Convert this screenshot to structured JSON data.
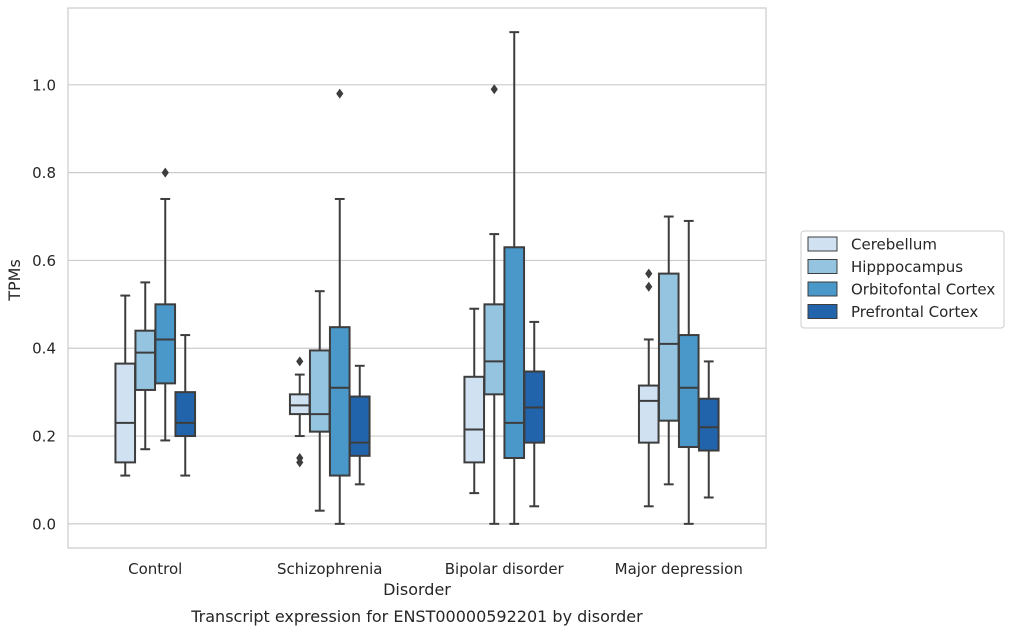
{
  "chart_data": {
    "type": "box",
    "caption": "Transcript expression for ENST00000592201 by disorder",
    "xlabel": "Disorder",
    "ylabel": "TPMs",
    "ylim": [
      -0.055,
      1.175
    ],
    "yticks": [
      0.0,
      0.2,
      0.4,
      0.6,
      0.8,
      1.0
    ],
    "ytick_labels": [
      "0.0",
      "0.2",
      "0.4",
      "0.6",
      "0.8",
      "1.0"
    ],
    "grid": true,
    "legend_position": "right-outside",
    "categories": [
      "Control",
      "Schizophrenia",
      "Bipolar disorder",
      "Major depression"
    ],
    "series": [
      {
        "name": "Cerebellum",
        "color": "#d0e1f2",
        "boxes": [
          {
            "whislo": 0.11,
            "q1": 0.14,
            "med": 0.23,
            "q3": 0.365,
            "whishi": 0.52,
            "fliers": []
          },
          {
            "whislo": 0.2,
            "q1": 0.25,
            "med": 0.27,
            "q3": 0.295,
            "whishi": 0.34,
            "fliers": [
              0.37,
              0.15,
              0.14
            ]
          },
          {
            "whislo": 0.07,
            "q1": 0.14,
            "med": 0.215,
            "q3": 0.335,
            "whishi": 0.49,
            "fliers": []
          },
          {
            "whislo": 0.04,
            "q1": 0.185,
            "med": 0.28,
            "q3": 0.315,
            "whishi": 0.42,
            "fliers": [
              0.57,
              0.54
            ]
          }
        ]
      },
      {
        "name": "Hipppocampus",
        "color": "#94c4df",
        "boxes": [
          {
            "whislo": 0.17,
            "q1": 0.305,
            "med": 0.39,
            "q3": 0.44,
            "whishi": 0.55,
            "fliers": []
          },
          {
            "whislo": 0.03,
            "q1": 0.21,
            "med": 0.25,
            "q3": 0.395,
            "whishi": 0.53,
            "fliers": []
          },
          {
            "whislo": 0.0,
            "q1": 0.295,
            "med": 0.37,
            "q3": 0.5,
            "whishi": 0.66,
            "fliers": [
              0.99
            ]
          },
          {
            "whislo": 0.09,
            "q1": 0.235,
            "med": 0.41,
            "q3": 0.57,
            "whishi": 0.7,
            "fliers": []
          }
        ]
      },
      {
        "name": "Orbitofontal Cortex",
        "color": "#4a98c9",
        "boxes": [
          {
            "whislo": 0.19,
            "q1": 0.32,
            "med": 0.42,
            "q3": 0.5,
            "whishi": 0.74,
            "fliers": [
              0.8
            ]
          },
          {
            "whislo": 0.0,
            "q1": 0.11,
            "med": 0.31,
            "q3": 0.448,
            "whishi": 0.74,
            "fliers": [
              0.98
            ]
          },
          {
            "whislo": 0.0,
            "q1": 0.15,
            "med": 0.23,
            "q3": 0.63,
            "whishi": 1.12,
            "fliers": []
          },
          {
            "whislo": 0.0,
            "q1": 0.175,
            "med": 0.31,
            "q3": 0.43,
            "whishi": 0.69,
            "fliers": []
          }
        ]
      },
      {
        "name": "Prefrontal Cortex",
        "color": "#2164ab",
        "boxes": [
          {
            "whislo": 0.11,
            "q1": 0.2,
            "med": 0.23,
            "q3": 0.3,
            "whishi": 0.43,
            "fliers": []
          },
          {
            "whislo": 0.09,
            "q1": 0.155,
            "med": 0.185,
            "q3": 0.29,
            "whishi": 0.36,
            "fliers": []
          },
          {
            "whislo": 0.04,
            "q1": 0.185,
            "med": 0.265,
            "q3": 0.347,
            "whishi": 0.46,
            "fliers": []
          },
          {
            "whislo": 0.06,
            "q1": 0.167,
            "med": 0.22,
            "q3": 0.285,
            "whishi": 0.37,
            "fliers": []
          }
        ]
      }
    ]
  },
  "colors": {
    "grid": "#cccccc",
    "frame": "#cccccc",
    "box_edge": "#3d3d3d",
    "text": "#262626"
  }
}
